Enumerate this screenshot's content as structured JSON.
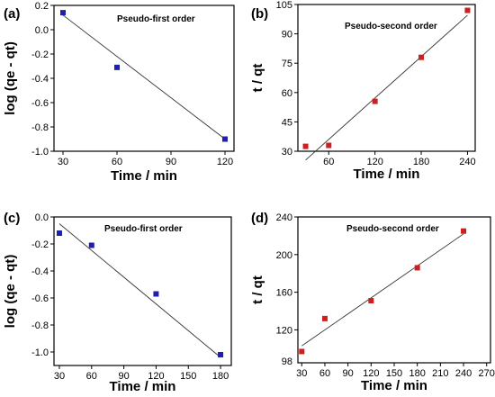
{
  "chart_data": [
    {
      "panel_label": "(a)",
      "type": "scatter",
      "title": "Pseudo-first order",
      "xlabel": "Time / min",
      "ylabel": "log (qe - qt)",
      "xlim": [
        25,
        125
      ],
      "ylim": [
        -1.0,
        0.2
      ],
      "xticks": [
        30,
        60,
        90,
        120
      ],
      "yticks": [
        -1.0,
        -0.8,
        -0.6,
        -0.4,
        -0.2,
        0.0,
        0.2
      ],
      "ytick_labels": [
        "-1.0",
        "-0.8",
        "-0.6",
        "-0.4",
        "-0.2",
        "0.0",
        "0.2"
      ],
      "series": [
        {
          "x": [
            30,
            60,
            120
          ],
          "y": [
            0.14,
            -0.31,
            -0.9
          ],
          "color": "#1f1fa8",
          "marker": "square"
        }
      ],
      "fit_line": {
        "x": [
          30,
          120
        ],
        "y": [
          0.12,
          -0.9
        ]
      }
    },
    {
      "panel_label": "(b)",
      "type": "scatter",
      "title": "Pseudo-second order",
      "xlabel": "Time / min",
      "ylabel": "t / qt",
      "xlim": [
        20,
        250
      ],
      "ylim": [
        30,
        105
      ],
      "xticks": [
        60,
        120,
        180,
        240
      ],
      "yticks": [
        30,
        45,
        60,
        75,
        90,
        105
      ],
      "ytick_labels": [
        "30",
        "45",
        "60",
        "75",
        "90",
        "105"
      ],
      "series": [
        {
          "x": [
            30,
            60,
            120,
            180,
            240
          ],
          "y": [
            32.5,
            33,
            55.5,
            78,
            102
          ],
          "color": "#cc2020",
          "marker": "square"
        }
      ],
      "fit_line": {
        "x": [
          30,
          240
        ],
        "y": [
          25.5,
          99.5
        ]
      }
    },
    {
      "panel_label": "(c)",
      "type": "scatter",
      "title": "Pseudo-first order",
      "xlabel": "Time / min",
      "ylabel": "log (qe - qt)",
      "xlim": [
        25,
        190
      ],
      "ylim": [
        -1.1,
        0.0
      ],
      "xticks": [
        30,
        60,
        90,
        120,
        150,
        180
      ],
      "yticks": [
        -1.0,
        -0.8,
        -0.6,
        -0.4,
        -0.2,
        0.0
      ],
      "ytick_labels": [
        "-1.0",
        "-0.8",
        "-0.6",
        "-0.4",
        "-0.2",
        "0.0"
      ],
      "series": [
        {
          "x": [
            30,
            60,
            120,
            180
          ],
          "y": [
            -0.12,
            -0.21,
            -0.57,
            -1.02
          ],
          "color": "#1f1fa8",
          "marker": "square"
        }
      ],
      "fit_line": {
        "x": [
          30,
          180
        ],
        "y": [
          -0.05,
          -1.04
        ]
      }
    },
    {
      "panel_label": "(d)",
      "type": "scatter",
      "title": "Pseudo-second order",
      "xlabel": "Time / min",
      "ylabel": "t / qt",
      "xlim": [
        25,
        275
      ],
      "ylim": [
        85,
        240
      ],
      "xticks": [
        30,
        60,
        90,
        120,
        150,
        180,
        210,
        240,
        270
      ],
      "yticks": [
        120,
        160,
        200,
        240
      ],
      "ytick_labels": [
        "120",
        "160",
        "200",
        "240"
      ],
      "extra_ytick_label": "98",
      "series": [
        {
          "x": [
            30,
            60,
            120,
            180,
            240
          ],
          "y": [
            97,
            132,
            151,
            186,
            225
          ],
          "color": "#cc2020",
          "marker": "square"
        }
      ],
      "fit_line": {
        "x": [
          30,
          240
        ],
        "y": [
          103,
          222
        ]
      }
    }
  ]
}
